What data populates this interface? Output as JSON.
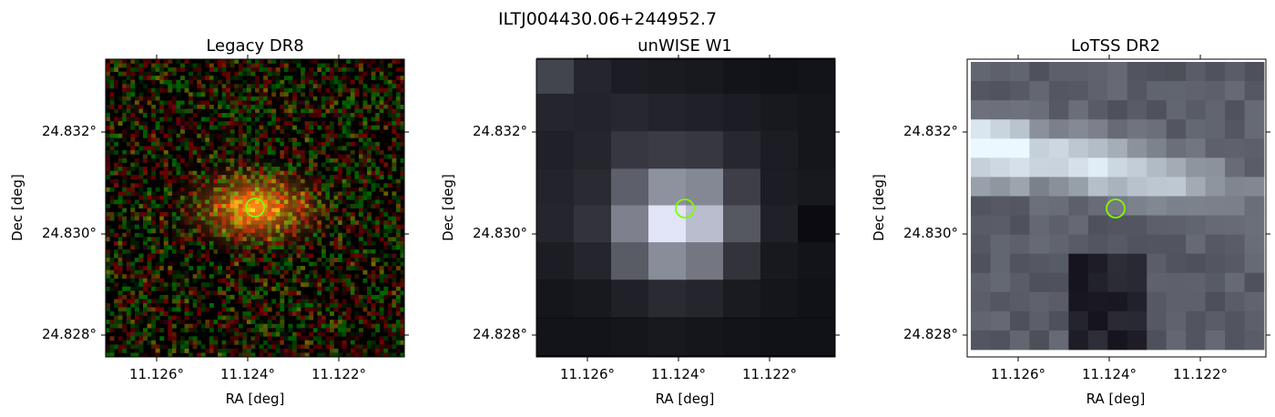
{
  "figure": {
    "suptitle": "ILTJ004430.06+244952.7",
    "marker_color": "#7fff00"
  },
  "panels": [
    {
      "title": "Legacy DR8",
      "xlabel": "RA [deg]",
      "ylabel": "Dec [deg]",
      "xticks": [
        "11.126°",
        "11.124°",
        "11.122°"
      ],
      "yticks": [
        "24.832°",
        "24.830°",
        "24.828°"
      ],
      "image": "colour composite cutout (noisy red/green background, orange galaxy at centre)",
      "marker": "green circle"
    },
    {
      "title": "unWISE W1",
      "xlabel": "RA [deg]",
      "ylabel": "Dec [deg]",
      "xticks": [
        "11.126°",
        "11.124°",
        "11.122°"
      ],
      "yticks": [
        "24.832°",
        "24.830°",
        "24.828°"
      ],
      "image": "greyscale pixelated cutout, bright source at centre",
      "marker": "green circle"
    },
    {
      "title": "LoTSS DR2",
      "xlabel": "RA [deg]",
      "ylabel": "Dec [deg]",
      "xticks": [
        "11.126°",
        "11.124°",
        "11.122°"
      ],
      "yticks": [
        "24.832°",
        "24.830°",
        "24.828°"
      ],
      "image": "greyscale pixelated radio cutout, elongated bright emission",
      "marker": "green circle"
    }
  ]
}
